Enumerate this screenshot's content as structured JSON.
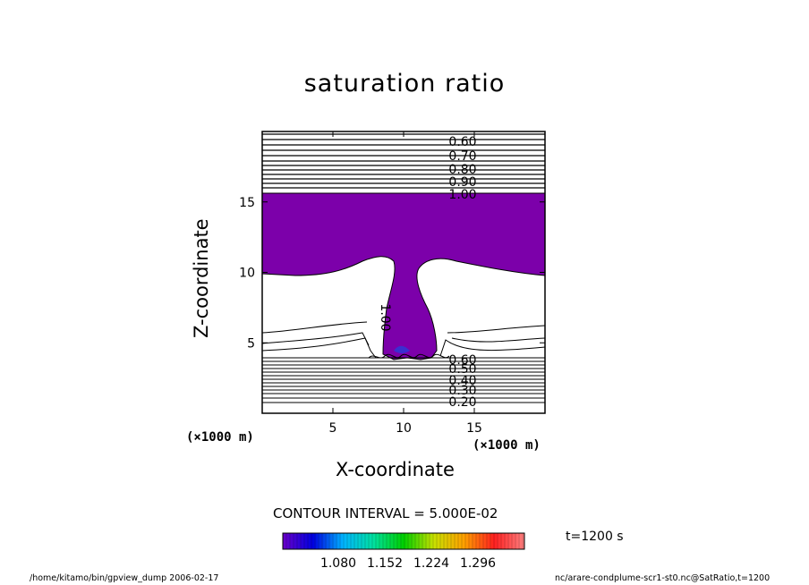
{
  "chart_data": {
    "type": "contour",
    "title": "saturation ratio",
    "xlabel": "X-coordinate",
    "ylabel": "Z-coordinate",
    "x_unit_label": "(×1000 m)",
    "y_unit_label": "(×1000 m)",
    "xlim": [
      0,
      20
    ],
    "ylim": [
      0,
      20
    ],
    "x_ticks": [
      5,
      10,
      15
    ],
    "y_ticks": [
      5,
      10,
      15
    ],
    "contour_labels": [
      "0.60",
      "0.70",
      "0.80",
      "0.90",
      "1.00",
      "1.00",
      "0.60",
      "0.50",
      "0.40",
      "0.30",
      "0.20"
    ],
    "contour_interval": "CONTOUR INTERVAL = 5.000E-02",
    "shaded_threshold": 1.0,
    "colorbar_ticks": [
      "1.080",
      "1.152",
      "1.224",
      "1.296"
    ],
    "colorbar_colors": [
      "#6a00c8",
      "#0000e0",
      "#00b4ff",
      "#00e0a0",
      "#00d000",
      "#c8e000",
      "#ffa000",
      "#ff2020",
      "#ff8080"
    ],
    "shade_color": "#7c00aa",
    "time_label": "t=1200 s"
  },
  "footer": {
    "left": "/home/kitamo/bin/gpview_dump  2006-02-17",
    "right": "nc/arare-condplume-scr1-st0.nc@SatRatio,t=1200"
  }
}
